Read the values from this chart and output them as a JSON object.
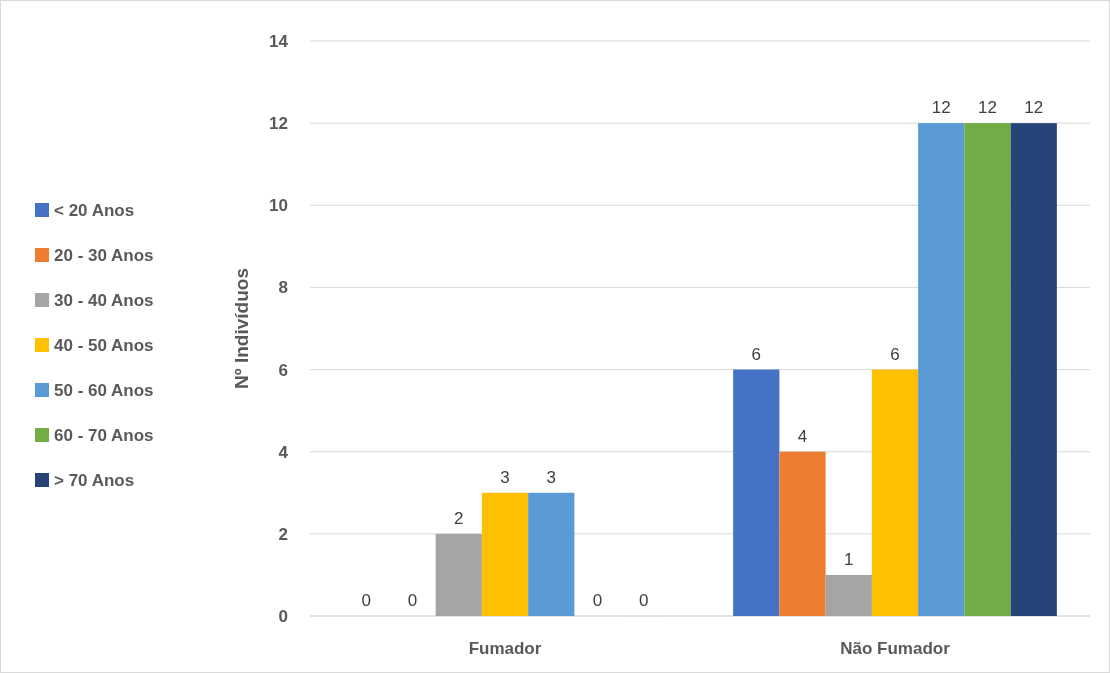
{
  "chart_data": {
    "type": "bar",
    "ylabel": "Nº Indivíduos",
    "categories": [
      "Fumador",
      "Não Fumador"
    ],
    "series": [
      {
        "name": "< 20 Anos",
        "color": "#4472c4",
        "values": [
          0,
          6
        ]
      },
      {
        "name": "20 - 30 Anos",
        "color": "#ed7d31",
        "values": [
          0,
          4
        ]
      },
      {
        "name": "30 - 40 Anos",
        "color": "#a5a5a5",
        "values": [
          2,
          1
        ]
      },
      {
        "name": "40 - 50 Anos",
        "color": "#ffc000",
        "values": [
          3,
          6
        ]
      },
      {
        "name": "50 - 60 Anos",
        "color": "#5b9bd5",
        "values": [
          3,
          12
        ]
      },
      {
        "name": "60 - 70 Anos",
        "color": "#70ad47",
        "values": [
          0,
          12
        ]
      },
      {
        "name": "> 70 Anos",
        "color": "#264478",
        "values": [
          0,
          12
        ]
      }
    ],
    "ylim": [
      0,
      14
    ],
    "yticks": [
      0,
      2,
      4,
      6,
      8,
      10,
      12,
      14
    ],
    "grid": "y",
    "legend": "left",
    "data_labels": true
  }
}
